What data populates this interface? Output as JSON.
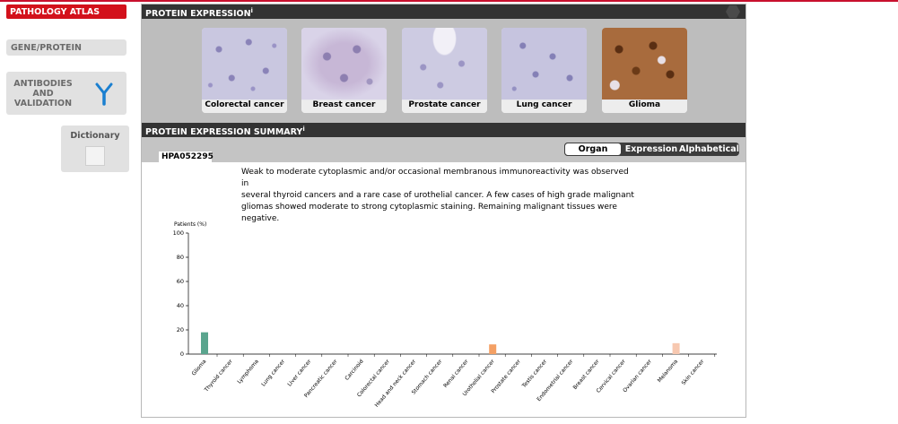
{
  "nav": {
    "atlas": "PATHOLOGY ATLAS",
    "gene_protein": "GENE/PROTEIN",
    "antibodies": [
      "ANTIBODIES",
      "AND",
      "VALIDATION"
    ],
    "dictionary": "Dictionary"
  },
  "expression_section": {
    "title": "PROTEIN EXPRESSION",
    "info_mark": "i",
    "tiles": [
      {
        "label": "Colorectal cancer"
      },
      {
        "label": "Breast cancer"
      },
      {
        "label": "Prostate cancer"
      },
      {
        "label": "Lung cancer"
      },
      {
        "label": "Glioma"
      }
    ]
  },
  "summary_section": {
    "title": "PROTEIN EXPRESSION SUMMARY",
    "info_mark": "i",
    "antibody_id": "HPA052295",
    "tabs": {
      "organ": "Organ",
      "expression": "Expression",
      "alphabetical": "Alphabetical"
    },
    "active_tab": "organ",
    "description": [
      "Weak to moderate cytoplasmic and/or occasional membranous immunoreactivity was observed in",
      "several thyroid cancers and a rare case of urothelial cancer. A few cases of high grade malignant",
      "gliomas showed moderate to strong cytoplasmic staining. Remaining malignant tissues were",
      "negative."
    ]
  },
  "chart_data": {
    "type": "bar",
    "ylabel": "Patients (%)",
    "ylim": [
      0,
      100
    ],
    "yticks": [
      0,
      20,
      40,
      60,
      80,
      100
    ],
    "categories": [
      "Glioma",
      "Thyroid cancer",
      "Lymphoma",
      "Lung cancer",
      "Liver cancer",
      "Pancreatic cancer",
      "Carcinoid",
      "Colorectal cancer",
      "Head and neck cancer",
      "Stomach cancer",
      "Renal cancer",
      "Urothelial cancer",
      "Prostate cancer",
      "Testis cancer",
      "Endometrial cancer",
      "Breast cancer",
      "Cervical cancer",
      "Ovarian cancer",
      "Melanoma",
      "Skin cancer"
    ],
    "values": [
      18,
      0,
      0,
      0,
      0,
      0,
      0,
      0,
      0,
      0,
      0,
      8,
      0,
      0,
      0,
      0,
      0,
      0,
      9,
      0
    ],
    "colors": [
      "#5aa58e",
      "#5aa58e",
      "#5aa58e",
      "#5aa58e",
      "#5aa58e",
      "#5aa58e",
      "#5aa58e",
      "#5aa58e",
      "#5aa58e",
      "#5aa58e",
      "#5aa58e",
      "#f4a064",
      "#f4a064",
      "#f4a064",
      "#f4a064",
      "#f4a064",
      "#f4a064",
      "#f4a064",
      "#f7c8b0",
      "#f7c8b0"
    ]
  }
}
